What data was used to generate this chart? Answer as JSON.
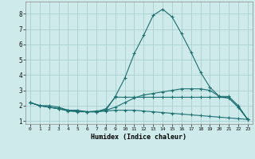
{
  "xlabel": "Humidex (Indice chaleur)",
  "x": [
    0,
    1,
    2,
    3,
    4,
    5,
    6,
    7,
    8,
    9,
    10,
    11,
    12,
    13,
    14,
    15,
    16,
    17,
    18,
    19,
    20,
    21,
    22,
    23
  ],
  "line1": [
    2.2,
    2.0,
    2.0,
    1.9,
    1.7,
    1.7,
    1.6,
    1.65,
    1.7,
    2.6,
    3.8,
    5.4,
    6.6,
    7.9,
    8.3,
    7.8,
    6.7,
    5.5,
    4.2,
    3.2,
    2.6,
    2.6,
    2.0,
    1.1
  ],
  "line2": [
    2.2,
    2.0,
    1.9,
    1.8,
    1.7,
    1.65,
    1.6,
    1.6,
    1.7,
    1.9,
    2.2,
    2.5,
    2.7,
    2.8,
    2.9,
    3.0,
    3.1,
    3.1,
    3.1,
    3.0,
    2.6,
    2.5,
    1.9,
    1.1
  ],
  "line3": [
    2.2,
    2.0,
    1.9,
    1.8,
    1.7,
    1.65,
    1.6,
    1.6,
    1.8,
    2.55,
    2.55,
    2.55,
    2.55,
    2.55,
    2.55,
    2.55,
    2.55,
    2.55,
    2.55,
    2.55,
    2.55,
    2.5,
    1.9,
    1.1
  ],
  "line4": [
    2.2,
    2.0,
    1.9,
    1.8,
    1.65,
    1.6,
    1.6,
    1.6,
    1.65,
    1.7,
    1.7,
    1.7,
    1.65,
    1.6,
    1.55,
    1.5,
    1.45,
    1.4,
    1.35,
    1.3,
    1.25,
    1.2,
    1.15,
    1.1
  ],
  "line_color": "#1a7070",
  "bg_color": "#ceeaea",
  "grid_color": "#aacfcf",
  "xlim": [
    -0.5,
    23.5
  ],
  "ylim": [
    0.8,
    8.8
  ],
  "yticks": [
    1,
    2,
    3,
    4,
    5,
    6,
    7,
    8
  ],
  "xticks": [
    0,
    1,
    2,
    3,
    4,
    5,
    6,
    7,
    8,
    9,
    10,
    11,
    12,
    13,
    14,
    15,
    16,
    17,
    18,
    19,
    20,
    21,
    22,
    23
  ]
}
